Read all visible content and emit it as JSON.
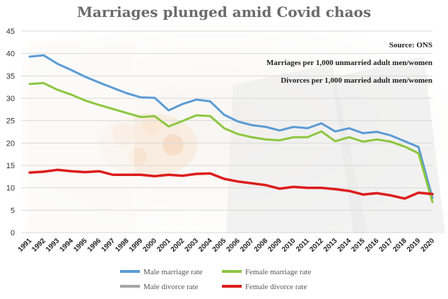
{
  "chart_data": {
    "type": "line",
    "title": "Marriages plunged amid Covid chaos",
    "notes": [
      "Source: ONS",
      "Marriages per 1,000 unmarried adult men/women",
      "Divorces per 1,000 married adult men/women"
    ],
    "x": [
      "1991",
      "1992",
      "1993",
      "1994",
      "1995",
      "1996",
      "1997",
      "1998",
      "1999",
      "2000",
      "2001",
      "2002",
      "2003",
      "2004",
      "2005",
      "2006",
      "2007",
      "2008",
      "2009",
      "2010",
      "2011",
      "2012",
      "2013",
      "2014",
      "2015",
      "2016",
      "2017",
      "2018",
      "2019",
      "2020"
    ],
    "ylim": [
      0,
      45
    ],
    "yticks": [
      0,
      5,
      10,
      15,
      20,
      25,
      30,
      35,
      40,
      45
    ],
    "grid": true,
    "legend_position": "bottom",
    "series": [
      {
        "name": "Male marriage rate",
        "color": "#5b9bd5",
        "values": [
          39.3,
          39.6,
          37.7,
          36.3,
          34.8,
          33.5,
          32.3,
          31.1,
          30.2,
          30.1,
          27.3,
          28.7,
          29.7,
          29.3,
          26.3,
          24.8,
          24.0,
          23.6,
          22.8,
          23.6,
          23.3,
          24.4,
          22.6,
          23.3,
          22.2,
          22.5,
          21.7,
          20.4,
          19.1,
          7.7
        ]
      },
      {
        "name": "Female marriage rate",
        "color": "#8dc63f",
        "values": [
          33.2,
          33.4,
          31.9,
          30.8,
          29.5,
          28.5,
          27.6,
          26.7,
          25.8,
          26.0,
          23.7,
          24.9,
          26.2,
          26.0,
          23.3,
          22.0,
          21.3,
          20.8,
          20.6,
          21.3,
          21.3,
          22.6,
          20.4,
          21.3,
          20.3,
          20.8,
          20.3,
          19.2,
          17.7,
          6.8
        ]
      },
      {
        "name": "Male divorce rate",
        "color": "#a6a6a6",
        "values": [
          13.4,
          13.6,
          14.0,
          13.7,
          13.5,
          13.7,
          12.9,
          12.9,
          12.9,
          12.6,
          12.9,
          12.7,
          13.1,
          13.2,
          12.0,
          11.4,
          11.0,
          10.6,
          9.8,
          10.2,
          10.0,
          10.0,
          9.7,
          9.3,
          8.5,
          8.8,
          8.3,
          7.6,
          8.9,
          8.5
        ]
      },
      {
        "name": "Female divorce rate",
        "color": "#dd1c1c",
        "values": [
          13.4,
          13.6,
          14.0,
          13.7,
          13.5,
          13.7,
          12.9,
          12.9,
          12.9,
          12.6,
          12.9,
          12.7,
          13.1,
          13.2,
          12.0,
          11.4,
          11.0,
          10.6,
          9.8,
          10.2,
          10.0,
          10.0,
          9.7,
          9.3,
          8.5,
          8.8,
          8.3,
          7.6,
          8.9,
          8.6
        ]
      }
    ]
  }
}
